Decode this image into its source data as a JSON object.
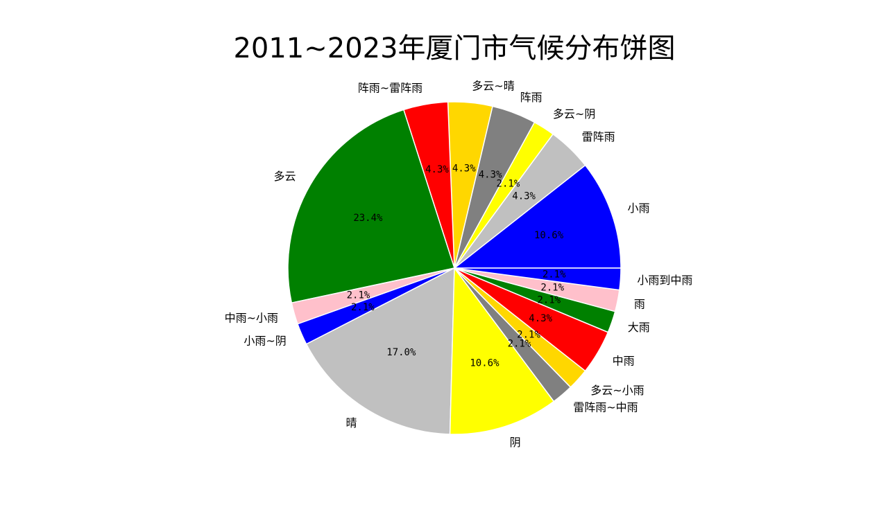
{
  "chart_data": {
    "type": "pie",
    "title": "2011~2023年厦门市气候分布饼图",
    "start_angle_deg": 0,
    "direction": "counterclockwise",
    "slices": [
      {
        "label": "小雨",
        "value": 10.6,
        "pct_label": "10.6%",
        "color": "#0000ff"
      },
      {
        "label": "雷阵雨",
        "value": 4.3,
        "pct_label": "4.3%",
        "color": "#c0c0c0"
      },
      {
        "label": "多云~阴",
        "value": 2.1,
        "pct_label": "2.1%",
        "color": "#ffff00"
      },
      {
        "label": "阵雨",
        "value": 4.3,
        "pct_label": "4.3%",
        "color": "#808080"
      },
      {
        "label": "多云~晴",
        "value": 4.3,
        "pct_label": "4.3%",
        "color": "#ffd700"
      },
      {
        "label": "阵雨~雷阵雨",
        "value": 4.3,
        "pct_label": "4.3%",
        "color": "#ff0000"
      },
      {
        "label": "多云",
        "value": 23.4,
        "pct_label": "23.4%",
        "color": "#008000"
      },
      {
        "label": "中雨~小雨",
        "value": 2.1,
        "pct_label": "2.1%",
        "color": "#ffc0cb"
      },
      {
        "label": "小雨~阴",
        "value": 2.1,
        "pct_label": "2.1%",
        "color": "#0000ff"
      },
      {
        "label": "晴",
        "value": 17.0,
        "pct_label": "17.0%",
        "color": "#c0c0c0"
      },
      {
        "label": "阴",
        "value": 10.6,
        "pct_label": "10.6%",
        "color": "#ffff00"
      },
      {
        "label": "雷阵雨~中雨",
        "value": 2.1,
        "pct_label": "2.1%",
        "color": "#808080"
      },
      {
        "label": "多云~小雨",
        "value": 2.1,
        "pct_label": "2.1%",
        "color": "#ffd700"
      },
      {
        "label": "中雨",
        "value": 4.3,
        "pct_label": "4.3%",
        "color": "#ff0000"
      },
      {
        "label": "大雨",
        "value": 2.1,
        "pct_label": "2.1%",
        "color": "#008000"
      },
      {
        "label": "雨",
        "value": 2.1,
        "pct_label": "2.1%",
        "color": "#ffc0cb"
      },
      {
        "label": "小雨到中雨",
        "value": 2.1,
        "pct_label": "2.1%",
        "color": "#0000ff"
      }
    ]
  }
}
